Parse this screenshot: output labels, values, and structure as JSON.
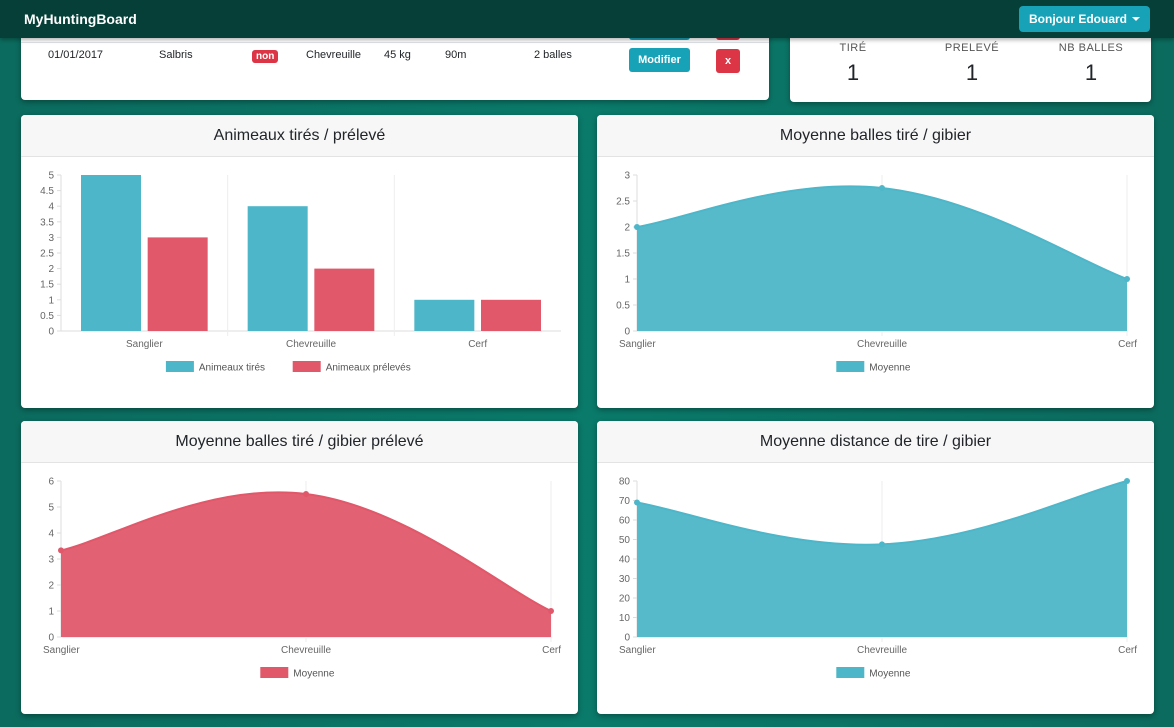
{
  "navbar": {
    "brand": "MyHuntingBoard",
    "user_button": "Bonjour Edouard"
  },
  "hunts_table": {
    "rows": [
      {
        "date": "01/01/2017",
        "location": "Salbris",
        "status": "non",
        "species": "Chevreuille",
        "weight": "45 kg",
        "distance": "90m",
        "bullets": "2 balles",
        "edit_label": "Modifier",
        "delete_label": "x"
      }
    ]
  },
  "stats": {
    "items": [
      {
        "label": "TIRÉ",
        "value": "1"
      },
      {
        "label": "PRELEVÉ",
        "value": "1"
      },
      {
        "label": "NB BALLES",
        "value": "1"
      }
    ]
  },
  "colors": {
    "teal": "#4db6c8",
    "red": "#e0586a"
  },
  "chart_data": [
    {
      "type": "bar",
      "title": "Animeaux tirés / prélevé",
      "categories": [
        "Sanglier",
        "Chevreuille",
        "Cerf"
      ],
      "series": [
        {
          "name": "Animeaux tirés",
          "values": [
            5,
            4,
            1
          ]
        },
        {
          "name": "Animeaux prélevés",
          "values": [
            3,
            2,
            1
          ]
        }
      ],
      "ylim": [
        0,
        5
      ],
      "yticks": [
        0,
        0.5,
        1,
        1.5,
        2,
        2.5,
        3,
        3.5,
        4,
        4.5,
        5
      ],
      "legend": "bottom"
    },
    {
      "type": "area",
      "title": "Moyenne balles tiré / gibier",
      "categories": [
        "Sanglier",
        "Chevreuille",
        "Cerf"
      ],
      "series": [
        {
          "name": "Moyenne",
          "values": [
            2,
            2.75,
            1
          ]
        }
      ],
      "ylim": [
        0,
        3
      ],
      "yticks": [
        0,
        0.5,
        1,
        1.5,
        2,
        2.5,
        3
      ],
      "legend": "bottom"
    },
    {
      "type": "area",
      "title": "Moyenne balles tiré / gibier prélevé",
      "categories": [
        "Sanglier",
        "Chevreuille",
        "Cerf"
      ],
      "series": [
        {
          "name": "Moyenne",
          "values": [
            3.33,
            5.5,
            1
          ]
        }
      ],
      "ylim": [
        0,
        6
      ],
      "yticks": [
        0,
        1,
        2,
        3,
        4,
        5,
        6
      ],
      "legend": "bottom"
    },
    {
      "type": "area",
      "title": "Moyenne distance de tire / gibier",
      "categories": [
        "Sanglier",
        "Chevreuille",
        "Cerf"
      ],
      "series": [
        {
          "name": "Moyenne",
          "values": [
            69,
            47.5,
            80
          ]
        }
      ],
      "ylim": [
        0,
        80
      ],
      "yticks": [
        0,
        10,
        20,
        30,
        40,
        50,
        60,
        70,
        80
      ],
      "legend": "bottom"
    }
  ]
}
